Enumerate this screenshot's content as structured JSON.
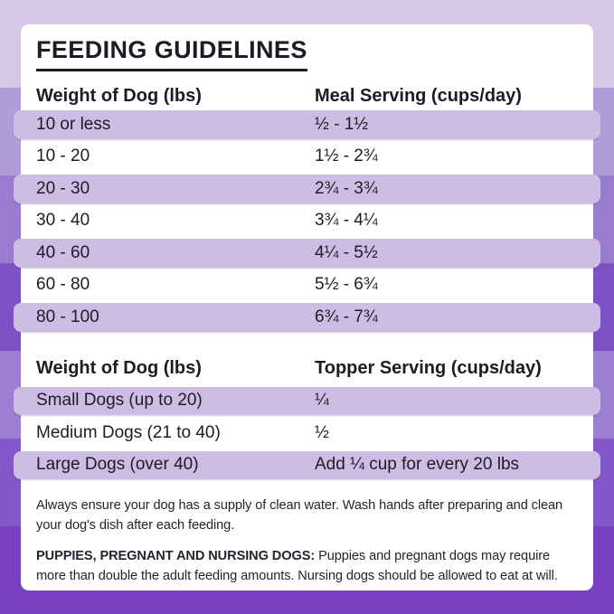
{
  "page": {
    "title": "FEEDING GUIDELINES"
  },
  "meal_table": {
    "columns": {
      "weight": "Weight of Dog (lbs)",
      "serving": "Meal Serving (cups/day)"
    },
    "rows": [
      {
        "weight": "10 or less",
        "serving": "½ - 1½"
      },
      {
        "weight": "10 - 20",
        "serving": "1½ - 2¾"
      },
      {
        "weight": "20 - 30",
        "serving": "2¾ - 3¾"
      },
      {
        "weight": "30 - 40",
        "serving": "3¾ - 4¼"
      },
      {
        "weight": "40 - 60",
        "serving": "4¼ - 5½"
      },
      {
        "weight": "60 - 80",
        "serving": "5½ - 6¾"
      },
      {
        "weight": "80 - 100",
        "serving": "6¾ - 7¾"
      }
    ]
  },
  "topper_table": {
    "columns": {
      "weight": "Weight of Dog (lbs)",
      "serving": "Topper Serving (cups/day)"
    },
    "rows": [
      {
        "weight": "Small Dogs (up to 20)",
        "serving": "¼"
      },
      {
        "weight": "Medium Dogs (21 to 40)",
        "serving": "½"
      },
      {
        "weight": "Large Dogs (over 40)",
        "serving": "Add ¼ cup for every 20 lbs"
      }
    ]
  },
  "notes": {
    "water": "Always ensure your dog has a supply of clean water. Wash hands after preparing and clean your dog's dish after each feeding.",
    "puppies_label": "PUPPIES, PREGNANT AND NURSING DOGS:",
    "puppies_text": " Puppies and pregnant dogs may require more than double the adult feeding amounts. Nursing dogs should be allowed to eat at will."
  },
  "colors": {
    "bg_bands": [
      "#d6c9e8",
      "#b29bd9",
      "#9a7ccf",
      "#7e51c6",
      "#9d7fd2",
      "#8457c9",
      "#7a40c2"
    ],
    "row_highlight": "#cdbde4",
    "card": "#ffffff",
    "text": "#1f1b24"
  }
}
